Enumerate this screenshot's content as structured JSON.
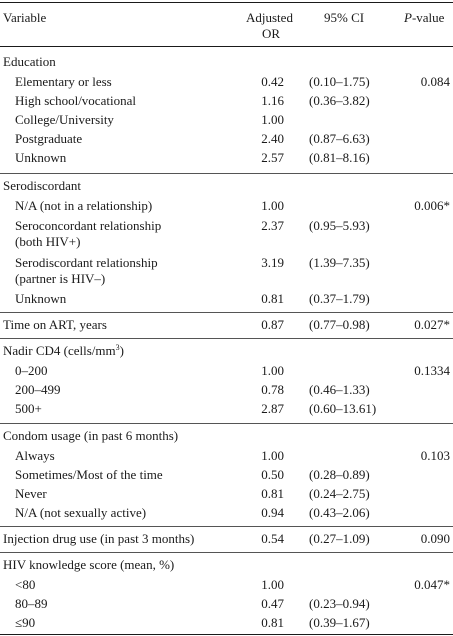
{
  "table": {
    "header": {
      "variable": "Variable",
      "or_line1": "Adjusted",
      "or_line2": "OR",
      "ci": "95% CI",
      "p_value": "P-value"
    },
    "sections": {
      "education": {
        "title": "Education",
        "p": "0.084",
        "rows": [
          {
            "label": "Elementary or less",
            "or": "0.42",
            "ci": "(0.10–1.75)"
          },
          {
            "label": "High school/vocational",
            "or": "1.16",
            "ci": "(0.36–3.82)"
          },
          {
            "label": "College/University",
            "or": "1.00",
            "ci": ""
          },
          {
            "label": "Postgraduate",
            "or": "2.40",
            "ci": "(0.87–6.63)"
          },
          {
            "label": "Unknown",
            "or": "2.57",
            "ci": "(0.81–8.16)"
          }
        ]
      },
      "serodiscordant": {
        "title": "Serodiscordant",
        "p": "0.006*",
        "rows": [
          {
            "label": "N/A (not in a relationship)",
            "or": "1.00",
            "ci": ""
          },
          {
            "label": "Seroconcordant relationship",
            "label2": "(both HIV+)",
            "or": "2.37",
            "ci": "(0.95–5.93)"
          },
          {
            "label": "Serodiscordant relationship",
            "label2": "(partner is HIV–)",
            "or": "3.19",
            "ci": "(1.39–7.35)"
          },
          {
            "label": "Unknown",
            "or": "0.81",
            "ci": "(0.37–1.79)"
          }
        ]
      },
      "time_on_art": {
        "title": "Time on ART, years",
        "or": "0.87",
        "ci": "(0.77–0.98)",
        "p": "0.027*"
      },
      "nadir_cd4": {
        "title_pre": "Nadir CD4 (cells/mm",
        "title_sup": "3",
        "title_post": ")",
        "p": "0.1334",
        "rows": [
          {
            "label": "0–200",
            "or": "1.00",
            "ci": ""
          },
          {
            "label": "200–499",
            "or": "0.78",
            "ci": "(0.46–1.33)"
          },
          {
            "label": "500+",
            "or": "2.87",
            "ci": "(0.60–13.61)"
          }
        ]
      },
      "condom_usage": {
        "title": "Condom usage (in past 6 months)",
        "p": "0.103",
        "rows": [
          {
            "label": "Always",
            "or": "1.00",
            "ci": ""
          },
          {
            "label": "Sometimes/Most of the time",
            "or": "0.50",
            "ci": "(0.28–0.89)"
          },
          {
            "label": "Never",
            "or": "0.81",
            "ci": "(0.24–2.75)"
          },
          {
            "label": "N/A (not sexually active)",
            "or": "0.94",
            "ci": "(0.43–2.06)"
          }
        ]
      },
      "injection_drug_use": {
        "title": "Injection drug use (in past 3 months)",
        "or": "0.54",
        "ci": "(0.27–1.09)",
        "p": "0.090"
      },
      "hiv_knowledge": {
        "title": "HIV knowledge score (mean, %)",
        "p": "0.047*",
        "rows": [
          {
            "label": "<80",
            "or": "1.00",
            "ci": ""
          },
          {
            "label": "80–89",
            "or": "0.47",
            "ci": "(0.23–0.94)"
          },
          {
            "label": "≤90",
            "or": "0.81",
            "ci": "(0.39–1.67)"
          }
        ]
      }
    }
  }
}
